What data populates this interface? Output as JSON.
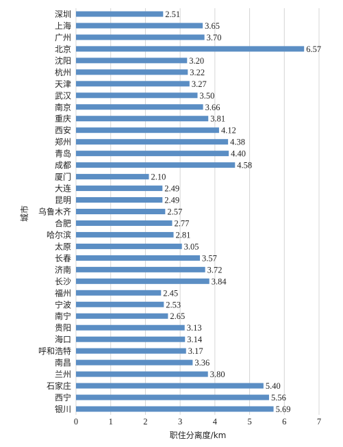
{
  "chart_data": {
    "type": "bar",
    "orientation": "horizontal",
    "categories": [
      "深圳",
      "上海",
      "广州",
      "北京",
      "沈阳",
      "杭州",
      "天津",
      "武汉",
      "南京",
      "重庆",
      "西安",
      "郑州",
      "青岛",
      "成都",
      "厦门",
      "大连",
      "昆明",
      "乌鲁木齐",
      "合肥",
      "哈尔滨",
      "太原",
      "长春",
      "济南",
      "长沙",
      "福州",
      "宁波",
      "南宁",
      "贵阳",
      "海口",
      "呼和浩特",
      "南昌",
      "兰州",
      "石家庄",
      "西宁",
      "银川"
    ],
    "values": [
      2.51,
      3.65,
      3.7,
      6.57,
      3.2,
      3.22,
      3.27,
      3.5,
      3.66,
      3.81,
      4.12,
      4.38,
      4.4,
      4.58,
      2.1,
      2.49,
      2.49,
      2.57,
      2.77,
      2.81,
      3.05,
      3.57,
      3.72,
      3.84,
      2.45,
      2.53,
      2.65,
      3.13,
      3.14,
      3.17,
      3.36,
      3.8,
      5.4,
      5.56,
      5.69
    ],
    "value_labels": [
      "2.51",
      "3.65",
      "3.70",
      "6.57",
      "3.20",
      "3.22",
      "3.27",
      "3.50",
      "3.66",
      "3.81",
      "4.12",
      "4.38",
      "4.40",
      "4.58",
      "2.10",
      "2.49",
      "2.49",
      "2.57",
      "2.77",
      "2.81",
      "3.05",
      "3.57",
      "3.72",
      "3.84",
      "2.45",
      "2.53",
      "2.65",
      "3.13",
      "3.14",
      "3.17",
      "3.36",
      "3.80",
      "5.40",
      "5.56",
      "5.69"
    ],
    "xlim": [
      0,
      7
    ],
    "xticks": [
      0,
      1,
      2,
      3,
      4,
      5,
      6,
      7
    ],
    "xlabel": "职住分离度/km",
    "ylabel": "城市",
    "grid": "vertical",
    "bar_color": "#5b8ec4"
  }
}
